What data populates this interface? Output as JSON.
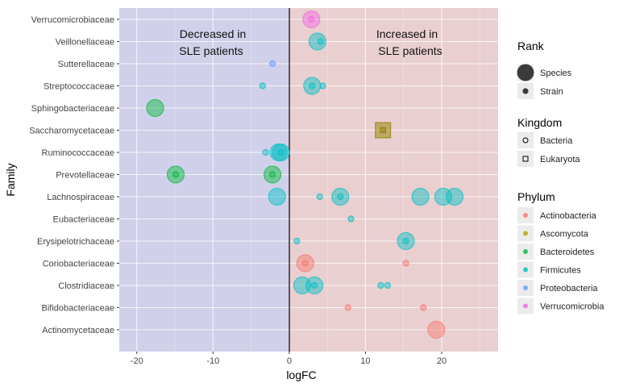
{
  "chart_data": {
    "type": "scatter",
    "xlabel": "logFC",
    "ylabel": "Family",
    "xlim": [
      -22.3,
      27.4
    ],
    "xticks": [
      -20,
      -10,
      0,
      10,
      20
    ],
    "grid": true,
    "annotations": [
      {
        "text": [
          "Decreased in",
          "SLE patients"
        ],
        "region": "logFC < 0",
        "color": "#d0d0ea"
      },
      {
        "text": [
          "Increased in",
          "SLE patients"
        ],
        "region": "logFC > 0",
        "color": "#e9cfd0"
      }
    ],
    "categories": [
      "Verrucomicrobiaceae",
      "Veillonellaceae",
      "Sutterellaceae",
      "Streptococcaceae",
      "Sphingobacteriaceae",
      "Saccharomycetaceae",
      "Ruminococcaceae",
      "Prevotellaceae",
      "Lachnospiraceae",
      "Eubacteriaceae",
      "Erysipelotrichaceae",
      "Coriobacteriaceae",
      "Clostridiaceae",
      "Bifidobacteriaceae",
      "Actinomycetaceae"
    ],
    "points": [
      {
        "family": "Verrucomicrobiaceae",
        "logFC": 2.9,
        "rank": "Species",
        "kingdom": "Bacteria",
        "phylum": "Verrucomicrobia"
      },
      {
        "family": "Verrucomicrobiaceae",
        "logFC": 2.9,
        "rank": "Strain",
        "kingdom": "Bacteria",
        "phylum": "Verrucomicrobia"
      },
      {
        "family": "Veillonellaceae",
        "logFC": 3.7,
        "rank": "Species",
        "kingdom": "Bacteria",
        "phylum": "Firmicutes"
      },
      {
        "family": "Veillonellaceae",
        "logFC": 4.1,
        "rank": "Strain",
        "kingdom": "Bacteria",
        "phylum": "Firmicutes"
      },
      {
        "family": "Sutterellaceae",
        "logFC": -2.2,
        "rank": "Strain",
        "kingdom": "Bacteria",
        "phylum": "Proteobacteria"
      },
      {
        "family": "Streptococcaceae",
        "logFC": -3.5,
        "rank": "Strain",
        "kingdom": "Bacteria",
        "phylum": "Firmicutes"
      },
      {
        "family": "Streptococcaceae",
        "logFC": 3.0,
        "rank": "Species",
        "kingdom": "Bacteria",
        "phylum": "Firmicutes"
      },
      {
        "family": "Streptococcaceae",
        "logFC": 3.0,
        "rank": "Strain",
        "kingdom": "Bacteria",
        "phylum": "Firmicutes"
      },
      {
        "family": "Streptococcaceae",
        "logFC": 4.4,
        "rank": "Strain",
        "kingdom": "Bacteria",
        "phylum": "Firmicutes"
      },
      {
        "family": "Sphingobacteriaceae",
        "logFC": -17.6,
        "rank": "Species",
        "kingdom": "Bacteria",
        "phylum": "Bacteroidetes"
      },
      {
        "family": "Saccharomycetaceae",
        "logFC": 12.3,
        "rank": "Species",
        "kingdom": "Eukaryota",
        "phylum": "Ascomycota"
      },
      {
        "family": "Saccharomycetaceae",
        "logFC": 12.3,
        "rank": "Strain",
        "kingdom": "Eukaryota",
        "phylum": "Ascomycota"
      },
      {
        "family": "Ruminococcaceae",
        "logFC": -3.1,
        "rank": "Strain",
        "kingdom": "Bacteria",
        "phylum": "Firmicutes"
      },
      {
        "family": "Ruminococcaceae",
        "logFC": -1.4,
        "rank": "Species",
        "kingdom": "Bacteria",
        "phylum": "Firmicutes"
      },
      {
        "family": "Ruminococcaceae",
        "logFC": -1.1,
        "rank": "Species",
        "kingdom": "Bacteria",
        "phylum": "Firmicutes"
      },
      {
        "family": "Ruminococcaceae",
        "logFC": -1.1,
        "rank": "Strain",
        "kingdom": "Bacteria",
        "phylum": "Firmicutes"
      },
      {
        "family": "Prevotellaceae",
        "logFC": -14.9,
        "rank": "Species",
        "kingdom": "Bacteria",
        "phylum": "Bacteroidetes"
      },
      {
        "family": "Prevotellaceae",
        "logFC": -14.9,
        "rank": "Strain",
        "kingdom": "Bacteria",
        "phylum": "Bacteroidetes"
      },
      {
        "family": "Prevotellaceae",
        "logFC": -2.2,
        "rank": "Species",
        "kingdom": "Bacteria",
        "phylum": "Bacteroidetes"
      },
      {
        "family": "Prevotellaceae",
        "logFC": -2.2,
        "rank": "Strain",
        "kingdom": "Bacteria",
        "phylum": "Bacteroidetes"
      },
      {
        "family": "Lachnospiraceae",
        "logFC": -1.6,
        "rank": "Species",
        "kingdom": "Bacteria",
        "phylum": "Firmicutes"
      },
      {
        "family": "Lachnospiraceae",
        "logFC": 4.0,
        "rank": "Strain",
        "kingdom": "Bacteria",
        "phylum": "Firmicutes"
      },
      {
        "family": "Lachnospiraceae",
        "logFC": 6.7,
        "rank": "Species",
        "kingdom": "Bacteria",
        "phylum": "Firmicutes"
      },
      {
        "family": "Lachnospiraceae",
        "logFC": 6.7,
        "rank": "Strain",
        "kingdom": "Bacteria",
        "phylum": "Firmicutes"
      },
      {
        "family": "Lachnospiraceae",
        "logFC": 17.2,
        "rank": "Species",
        "kingdom": "Bacteria",
        "phylum": "Firmicutes"
      },
      {
        "family": "Lachnospiraceae",
        "logFC": 20.2,
        "rank": "Species",
        "kingdom": "Bacteria",
        "phylum": "Firmicutes"
      },
      {
        "family": "Lachnospiraceae",
        "logFC": 21.7,
        "rank": "Species",
        "kingdom": "Bacteria",
        "phylum": "Firmicutes"
      },
      {
        "family": "Eubacteriaceae",
        "logFC": 8.1,
        "rank": "Strain",
        "kingdom": "Bacteria",
        "phylum": "Firmicutes"
      },
      {
        "family": "Erysipelotrichaceae",
        "logFC": 1.0,
        "rank": "Strain",
        "kingdom": "Bacteria",
        "phylum": "Firmicutes"
      },
      {
        "family": "Erysipelotrichaceae",
        "logFC": 15.3,
        "rank": "Species",
        "kingdom": "Bacteria",
        "phylum": "Firmicutes"
      },
      {
        "family": "Erysipelotrichaceae",
        "logFC": 15.3,
        "rank": "Strain",
        "kingdom": "Bacteria",
        "phylum": "Firmicutes"
      },
      {
        "family": "Coriobacteriaceae",
        "logFC": 2.1,
        "rank": "Species",
        "kingdom": "Bacteria",
        "phylum": "Actinobacteria"
      },
      {
        "family": "Coriobacteriaceae",
        "logFC": 2.1,
        "rank": "Strain",
        "kingdom": "Bacteria",
        "phylum": "Actinobacteria"
      },
      {
        "family": "Coriobacteriaceae",
        "logFC": 15.3,
        "rank": "Strain",
        "kingdom": "Bacteria",
        "phylum": "Actinobacteria"
      },
      {
        "family": "Clostridiaceae",
        "logFC": 1.7,
        "rank": "Species",
        "kingdom": "Bacteria",
        "phylum": "Firmicutes"
      },
      {
        "family": "Clostridiaceae",
        "logFC": 3.3,
        "rank": "Species",
        "kingdom": "Bacteria",
        "phylum": "Firmicutes"
      },
      {
        "family": "Clostridiaceae",
        "logFC": 3.3,
        "rank": "Strain",
        "kingdom": "Bacteria",
        "phylum": "Firmicutes"
      },
      {
        "family": "Clostridiaceae",
        "logFC": 12.0,
        "rank": "Strain",
        "kingdom": "Bacteria",
        "phylum": "Firmicutes"
      },
      {
        "family": "Clostridiaceae",
        "logFC": 12.9,
        "rank": "Strain",
        "kingdom": "Bacteria",
        "phylum": "Firmicutes"
      },
      {
        "family": "Bifidobacteriaceae",
        "logFC": 7.7,
        "rank": "Strain",
        "kingdom": "Bacteria",
        "phylum": "Actinobacteria"
      },
      {
        "family": "Bifidobacteriaceae",
        "logFC": 17.6,
        "rank": "Strain",
        "kingdom": "Bacteria",
        "phylum": "Actinobacteria"
      },
      {
        "family": "Actinomycetaceae",
        "logFC": 19.3,
        "rank": "Species",
        "kingdom": "Bacteria",
        "phylum": "Actinobacteria"
      }
    ],
    "legend": {
      "placement": "right",
      "rank": {
        "title": "Rank",
        "items": [
          "Species",
          "Strain"
        ]
      },
      "kingdom": {
        "title": "Kingdom",
        "items": [
          "Bacteria",
          "Eukaryota"
        ],
        "shapes": [
          "circle",
          "square"
        ]
      },
      "phylum": {
        "title": "Phylum",
        "items": [
          "Actinobacteria",
          "Ascomycota",
          "Bacteroidetes",
          "Firmicutes",
          "Proteobacteria",
          "Verrucomicrobia"
        ],
        "colors": [
          "#F8766D",
          "#B79F00",
          "#00BA38",
          "#00BFC4",
          "#619CFF",
          "#F564E3"
        ]
      }
    }
  }
}
